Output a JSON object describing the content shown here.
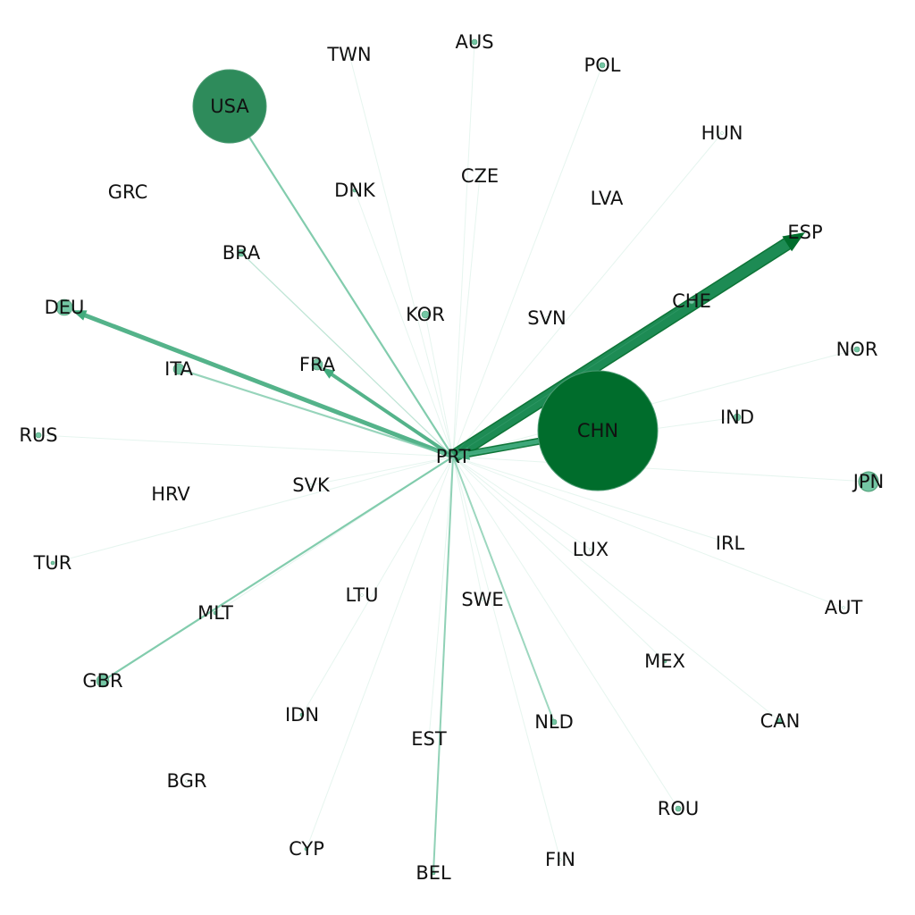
{
  "network": {
    "center": "PRT",
    "colors": {
      "edge_light": "#74c6a4",
      "edge_medium": "#41ab7d",
      "edge_strong": "#1f8c55",
      "edge_dark": "#006d2c",
      "node_large": "#2e8b5b",
      "node_dark": "#006d2c",
      "node_small": "#74c6a4"
    },
    "nodes": [
      {
        "id": "AUS",
        "label": "AUS"
      },
      {
        "id": "TWN",
        "label": "TWN"
      },
      {
        "id": "POL",
        "label": "POL"
      },
      {
        "id": "USA",
        "label": "USA"
      },
      {
        "id": "HUN",
        "label": "HUN"
      },
      {
        "id": "GRC",
        "label": "GRC"
      },
      {
        "id": "DNK",
        "label": "DNK"
      },
      {
        "id": "CZE",
        "label": "CZE"
      },
      {
        "id": "LVA",
        "label": "LVA"
      },
      {
        "id": "ESP",
        "label": "ESP"
      },
      {
        "id": "BRA",
        "label": "BRA"
      },
      {
        "id": "CHE",
        "label": "CHE"
      },
      {
        "id": "DEU",
        "label": "DEU"
      },
      {
        "id": "KOR",
        "label": "KOR"
      },
      {
        "id": "SVN",
        "label": "SVN"
      },
      {
        "id": "NOR",
        "label": "NOR"
      },
      {
        "id": "FRA",
        "label": "FRA"
      },
      {
        "id": "ITA",
        "label": "ITA"
      },
      {
        "id": "CHN",
        "label": "CHN"
      },
      {
        "id": "IND",
        "label": "IND"
      },
      {
        "id": "RUS",
        "label": "RUS"
      },
      {
        "id": "PRT",
        "label": "PRT"
      },
      {
        "id": "JPN",
        "label": "JPN"
      },
      {
        "id": "HRV",
        "label": "HRV"
      },
      {
        "id": "SVK",
        "label": "SVK"
      },
      {
        "id": "LUX",
        "label": "LUX"
      },
      {
        "id": "IRL",
        "label": "IRL"
      },
      {
        "id": "TUR",
        "label": "TUR"
      },
      {
        "id": "LTU",
        "label": "LTU"
      },
      {
        "id": "SWE",
        "label": "SWE"
      },
      {
        "id": "AUT",
        "label": "AUT"
      },
      {
        "id": "MLT",
        "label": "MLT"
      },
      {
        "id": "MEX",
        "label": "MEX"
      },
      {
        "id": "GBR",
        "label": "GBR"
      },
      {
        "id": "IDN",
        "label": "IDN"
      },
      {
        "id": "NLD",
        "label": "NLD"
      },
      {
        "id": "CAN",
        "label": "CAN"
      },
      {
        "id": "EST",
        "label": "EST"
      },
      {
        "id": "BGR",
        "label": "BGR"
      },
      {
        "id": "ROU",
        "label": "ROU"
      },
      {
        "id": "CYP",
        "label": "CYP"
      },
      {
        "id": "FIN",
        "label": "FIN"
      },
      {
        "id": "BEL",
        "label": "BEL"
      }
    ],
    "edges": [
      {
        "source": "PRT",
        "target": "ESP"
      },
      {
        "source": "CHN",
        "target": "PRT"
      },
      {
        "source": "PRT",
        "target": "DEU"
      },
      {
        "source": "PRT",
        "target": "FRA"
      },
      {
        "source": "PRT",
        "target": "USA"
      },
      {
        "source": "PRT",
        "target": "GBR"
      },
      {
        "source": "PRT",
        "target": "ITA"
      },
      {
        "source": "PRT",
        "target": "BEL"
      },
      {
        "source": "PRT",
        "target": "NLD"
      },
      {
        "source": "PRT",
        "target": "BRA"
      },
      {
        "source": "PRT",
        "target": "JPN"
      },
      {
        "source": "PRT",
        "target": "TUR"
      },
      {
        "source": "PRT",
        "target": "POL"
      },
      {
        "source": "PRT",
        "target": "CHE"
      },
      {
        "source": "PRT",
        "target": "SWE"
      },
      {
        "source": "PRT",
        "target": "FIN"
      },
      {
        "source": "PRT",
        "target": "ROU"
      },
      {
        "source": "PRT",
        "target": "CAN"
      },
      {
        "source": "PRT",
        "target": "MEX"
      },
      {
        "source": "PRT",
        "target": "AUT"
      },
      {
        "source": "PRT",
        "target": "IRL"
      },
      {
        "source": "PRT",
        "target": "IND"
      },
      {
        "source": "PRT",
        "target": "NOR"
      },
      {
        "source": "PRT",
        "target": "HUN"
      },
      {
        "source": "PRT",
        "target": "KOR"
      },
      {
        "source": "PRT",
        "target": "DNK"
      },
      {
        "source": "PRT",
        "target": "CZE"
      },
      {
        "source": "PRT",
        "target": "AUS"
      },
      {
        "source": "PRT",
        "target": "TWN"
      },
      {
        "source": "PRT",
        "target": "RUS"
      },
      {
        "source": "PRT",
        "target": "SVK"
      },
      {
        "source": "PRT",
        "target": "LUX"
      },
      {
        "source": "PRT",
        "target": "MLT"
      },
      {
        "source": "PRT",
        "target": "EST"
      },
      {
        "source": "PRT",
        "target": "IDN"
      },
      {
        "source": "PRT",
        "target": "CYP"
      }
    ]
  }
}
